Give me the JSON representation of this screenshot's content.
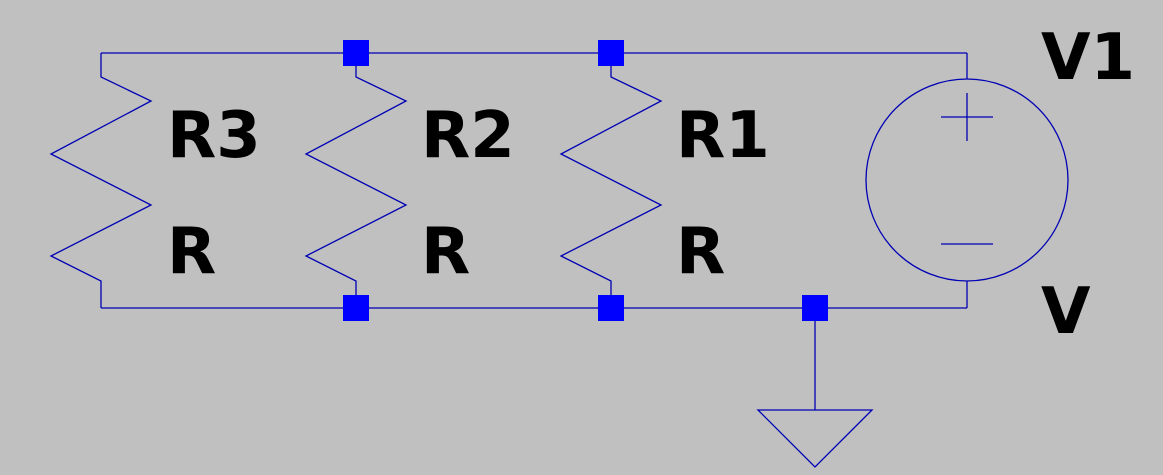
{
  "diagram": {
    "components": [
      {
        "id": "r3",
        "type": "resistor",
        "name": "R3",
        "value": "R"
      },
      {
        "id": "r2",
        "type": "resistor",
        "name": "R2",
        "value": "R"
      },
      {
        "id": "r1",
        "type": "resistor",
        "name": "R1",
        "value": "R"
      },
      {
        "id": "v1",
        "type": "voltage-source",
        "name": "V1",
        "value": "V"
      },
      {
        "id": "gnd",
        "type": "ground"
      }
    ],
    "colors": {
      "background": "#c0c0c0",
      "wire": "#0000b4",
      "junction": "#0000ff",
      "label": "#000000"
    }
  }
}
